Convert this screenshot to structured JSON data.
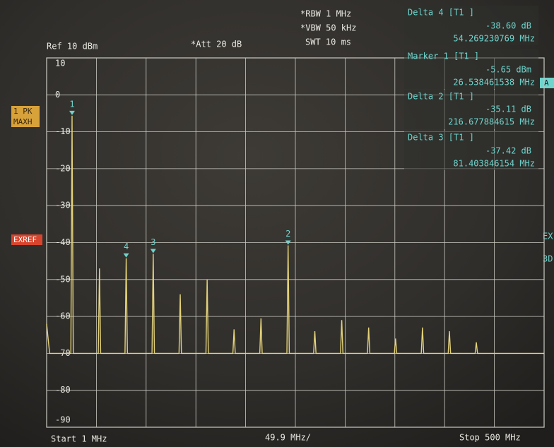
{
  "chart_data": {
    "type": "line",
    "header": {
      "ref": "Ref  10 dBm",
      "att": "*Att  20 dB",
      "rbw": "*RBW 1 MHz",
      "vbw": "*VBW 50 kHz",
      "swt": "SWT 10 ms"
    },
    "side_labels": {
      "trace": "1 PK",
      "detector": "MAXH",
      "exref": "EXREF",
      "a": "A",
      "ex": "EX",
      "three_d": "3D"
    },
    "footer": {
      "start": "Start 1 MHz",
      "span_per_div": "49.9 MHz/",
      "stop": "Stop 500 MHz"
    },
    "readouts": [
      {
        "title": "Delta 4 [T1 ]",
        "level": "-38.60 dB",
        "freq": "54.269230769 MHz"
      },
      {
        "title": "Marker 1 [T1 ]",
        "level": "-5.65 dBm",
        "freq": "26.538461538 MHz"
      },
      {
        "title": "Delta 2 [T1 ]",
        "level": "-35.11 dB",
        "freq": "216.677884615 MHz"
      },
      {
        "title": "Delta 3 [T1 ]",
        "level": "-37.42 dB",
        "freq": "81.403846154 MHz"
      }
    ],
    "markers": [
      {
        "label": "1",
        "x": 26.5,
        "y": -5.65
      },
      {
        "label": "4",
        "x": 80.8,
        "y": -44.25
      },
      {
        "label": "3",
        "x": 107.9,
        "y": -43.07
      },
      {
        "label": "2",
        "x": 243.2,
        "y": -40.76
      }
    ],
    "x": [
      1,
      4,
      25.3,
      26.5,
      27.7,
      52.8,
      54,
      55.2,
      79.6,
      80.8,
      82,
      106.7,
      107.9,
      109.1,
      133.8,
      135,
      136.2,
      160.8,
      162,
      163.2,
      187.8,
      189,
      190.2,
      214.8,
      216,
      217.2,
      242,
      243.2,
      244.4,
      268.8,
      270,
      271.2,
      295.8,
      297,
      298.2,
      322.8,
      324,
      325.2,
      349.8,
      351,
      352.2,
      376.8,
      378,
      379.2,
      403.8,
      405,
      406.2,
      430.8,
      432,
      433.2,
      500
    ],
    "series": [
      {
        "color": "#e3d27a",
        "values": [
          -62,
          -70,
          -70,
          -5.65,
          -70,
          -70,
          -47,
          -70,
          -70,
          -44.25,
          -70,
          -70,
          -43.07,
          -70,
          -70,
          -54,
          -70,
          -70,
          -50,
          -70,
          -70,
          -63.5,
          -70,
          -70,
          -60.5,
          -70,
          -70,
          -40.76,
          -70,
          -70,
          -64,
          -70,
          -70,
          -61,
          -70,
          -70,
          -63,
          -70,
          -70,
          -66,
          -70,
          -70,
          -63,
          -70,
          -70,
          -64,
          -70,
          -70,
          -67,
          -70,
          -70
        ]
      }
    ],
    "xlim": [
      1,
      500
    ],
    "xticks": [
      1,
      50.9,
      100.8,
      150.7,
      200.6,
      250.5,
      300.4,
      350.3,
      400.2,
      450.1,
      500
    ],
    "ylim": [
      -90,
      10
    ],
    "yticks": [
      10,
      0,
      -10,
      -20,
      -30,
      -40,
      -50,
      -60,
      -70,
      -80,
      -90
    ],
    "grid": true
  }
}
